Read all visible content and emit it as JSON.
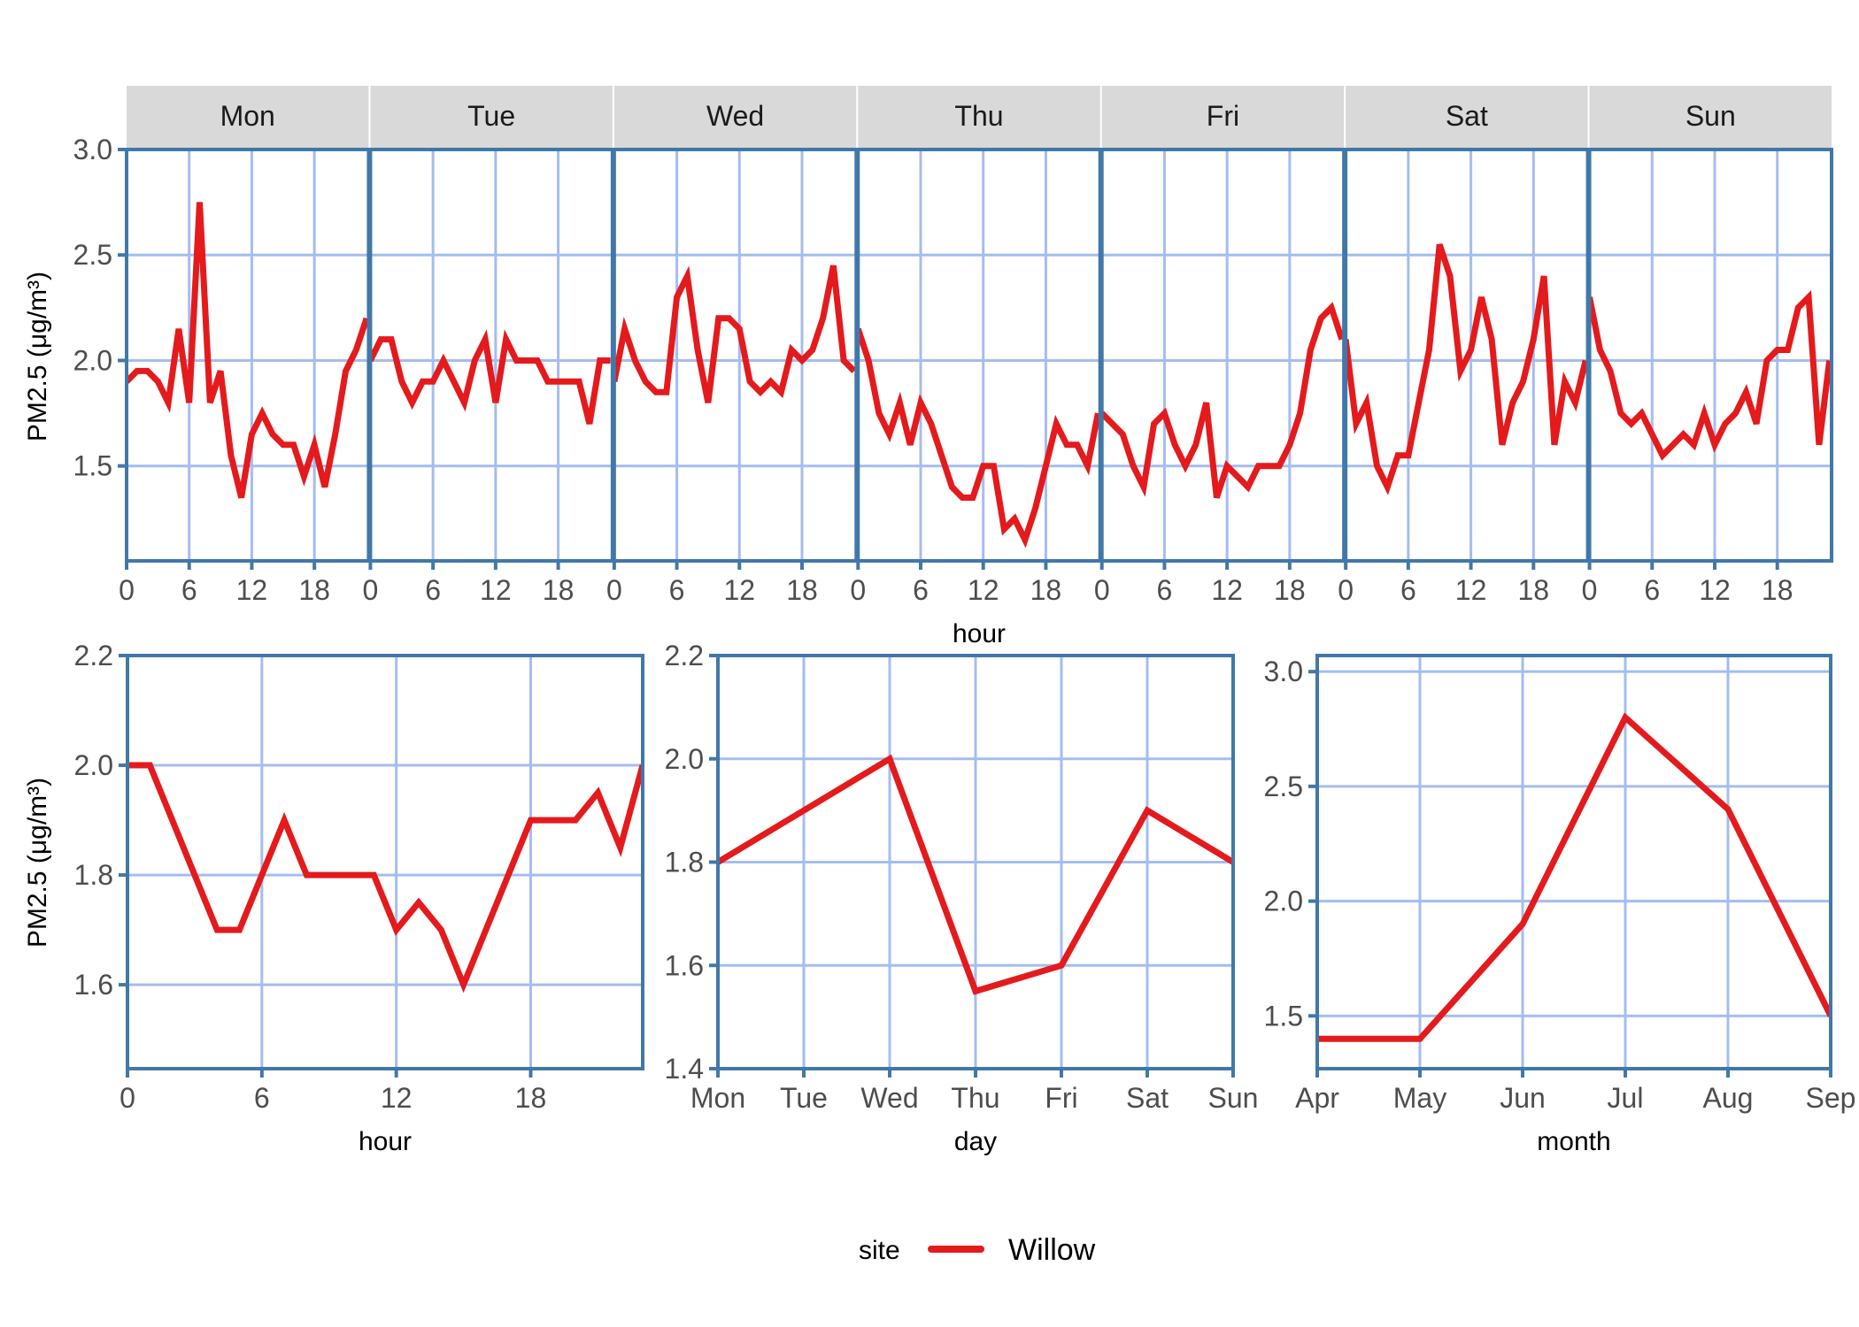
{
  "colors": {
    "line": "#E41A1C",
    "panel_border": "#4178A8",
    "grid": "#A4BDEF",
    "strip_bg": "#D9D9D9",
    "tick_text": "#4D4D4D"
  },
  "legend": {
    "title": "site",
    "entries": [
      {
        "label": "Willow",
        "color": "#E41A1C"
      }
    ]
  },
  "chart_data": [
    {
      "type": "line",
      "title": "",
      "facet_by": "weekday",
      "facets": [
        "Mon",
        "Tue",
        "Wed",
        "Thu",
        "Fri",
        "Sat",
        "Sun"
      ],
      "xlabel": "hour",
      "ylabel": "PM2.5 (μg/m³)",
      "x_ticks": [
        0,
        6,
        12,
        18
      ],
      "y_ticks": [
        1.5,
        2.0,
        2.5,
        3.0
      ],
      "y_tick_labels": [
        "1.5",
        "2.0",
        "2.5",
        "3.0"
      ],
      "ylim": [
        1.05,
        3.0
      ],
      "xlim": [
        0,
        23
      ],
      "grid": true,
      "series": [
        {
          "name": "Willow",
          "by_facet": {
            "Mon": [
              1.9,
              1.95,
              1.95,
              1.9,
              1.8,
              2.15,
              1.8,
              2.75,
              1.8,
              1.95,
              1.55,
              1.35,
              1.65,
              1.75,
              1.65,
              1.6,
              1.6,
              1.45,
              1.6,
              1.4,
              1.65,
              1.95,
              2.05,
              2.2
            ],
            "Tue": [
              2.0,
              2.1,
              2.1,
              1.9,
              1.8,
              1.9,
              1.9,
              2.0,
              1.9,
              1.8,
              2.0,
              2.1,
              1.8,
              2.1,
              2.0,
              2.0,
              2.0,
              1.9,
              1.9,
              1.9,
              1.9,
              1.7,
              2.0,
              2.0
            ],
            "Wed": [
              1.9,
              2.15,
              2.0,
              1.9,
              1.85,
              1.85,
              2.3,
              2.4,
              2.05,
              1.8,
              2.2,
              2.2,
              2.15,
              1.9,
              1.85,
              1.9,
              1.85,
              2.05,
              2.0,
              2.05,
              2.2,
              2.45,
              2.0,
              1.95
            ],
            "Thu": [
              2.15,
              2.0,
              1.75,
              1.65,
              1.8,
              1.6,
              1.8,
              1.7,
              1.55,
              1.4,
              1.35,
              1.35,
              1.5,
              1.5,
              1.2,
              1.25,
              1.15,
              1.3,
              1.5,
              1.7,
              1.6,
              1.6,
              1.5,
              1.75
            ],
            "Fri": [
              1.75,
              1.7,
              1.65,
              1.5,
              1.4,
              1.7,
              1.75,
              1.6,
              1.5,
              1.6,
              1.8,
              1.35,
              1.5,
              1.45,
              1.4,
              1.5,
              1.5,
              1.5,
              1.6,
              1.75,
              2.05,
              2.2,
              2.25,
              2.1
            ],
            "Sat": [
              2.1,
              1.7,
              1.8,
              1.5,
              1.4,
              1.55,
              1.55,
              1.8,
              2.05,
              2.55,
              2.4,
              1.95,
              2.05,
              2.3,
              2.1,
              1.6,
              1.8,
              1.9,
              2.1,
              2.4,
              1.6,
              1.9,
              1.8,
              2.0
            ],
            "Sun": [
              2.3,
              2.05,
              1.95,
              1.75,
              1.7,
              1.75,
              1.65,
              1.55,
              1.6,
              1.65,
              1.6,
              1.75,
              1.6,
              1.7,
              1.75,
              1.85,
              1.7,
              2.0,
              2.05,
              2.05,
              2.25,
              2.3,
              1.6,
              2.0
            ]
          }
        }
      ]
    },
    {
      "type": "line",
      "title": "",
      "xlabel": "hour",
      "ylabel": "PM2.5 (μg/m³)",
      "x": [
        0,
        1,
        2,
        3,
        4,
        5,
        6,
        7,
        8,
        9,
        10,
        11,
        12,
        13,
        14,
        15,
        16,
        17,
        18,
        19,
        20,
        21,
        22,
        23
      ],
      "x_ticks": [
        0,
        6,
        12,
        18
      ],
      "y_ticks": [
        1.6,
        1.8,
        2.0,
        2.2
      ],
      "y_tick_labels": [
        "1.6",
        "1.8",
        "2.0",
        "2.2"
      ],
      "ylim": [
        1.447,
        2.2
      ],
      "xlim": [
        0,
        23
      ],
      "grid": true,
      "series": [
        {
          "name": "Willow",
          "values": [
            2.0,
            2.0,
            1.9,
            1.8,
            1.7,
            1.7,
            1.8,
            1.9,
            1.8,
            1.8,
            1.8,
            1.8,
            1.7,
            1.75,
            1.7,
            1.6,
            1.7,
            1.8,
            1.9,
            1.9,
            1.9,
            1.95,
            1.85,
            2.0
          ]
        }
      ]
    },
    {
      "type": "line",
      "title": "",
      "xlabel": "day",
      "ylabel": "",
      "categories": [
        "Mon",
        "Tue",
        "Wed",
        "Thu",
        "Fri",
        "Sat",
        "Sun"
      ],
      "y_ticks": [
        1.4,
        1.6,
        1.8,
        2.0,
        2.2
      ],
      "y_tick_labels": [
        "1.4",
        "1.6",
        "1.8",
        "2.0",
        "2.2"
      ],
      "ylim": [
        1.4,
        2.2
      ],
      "grid": true,
      "series": [
        {
          "name": "Willow",
          "values": [
            1.8,
            1.9,
            2.0,
            1.55,
            1.6,
            1.9,
            1.8
          ]
        }
      ]
    },
    {
      "type": "line",
      "title": "",
      "xlabel": "month",
      "ylabel": "",
      "categories": [
        "Apr",
        "May",
        "Jun",
        "Jul",
        "Aug",
        "Sep"
      ],
      "y_ticks": [
        1.5,
        2.0,
        2.5,
        3.0
      ],
      "y_tick_labels": [
        "1.5",
        "2.0",
        "2.5",
        "3.0"
      ],
      "ylim": [
        1.27,
        3.07
      ],
      "grid": true,
      "series": [
        {
          "name": "Willow",
          "values": [
            1.4,
            1.4,
            1.9,
            2.8,
            2.4,
            1.5
          ]
        }
      ]
    }
  ]
}
